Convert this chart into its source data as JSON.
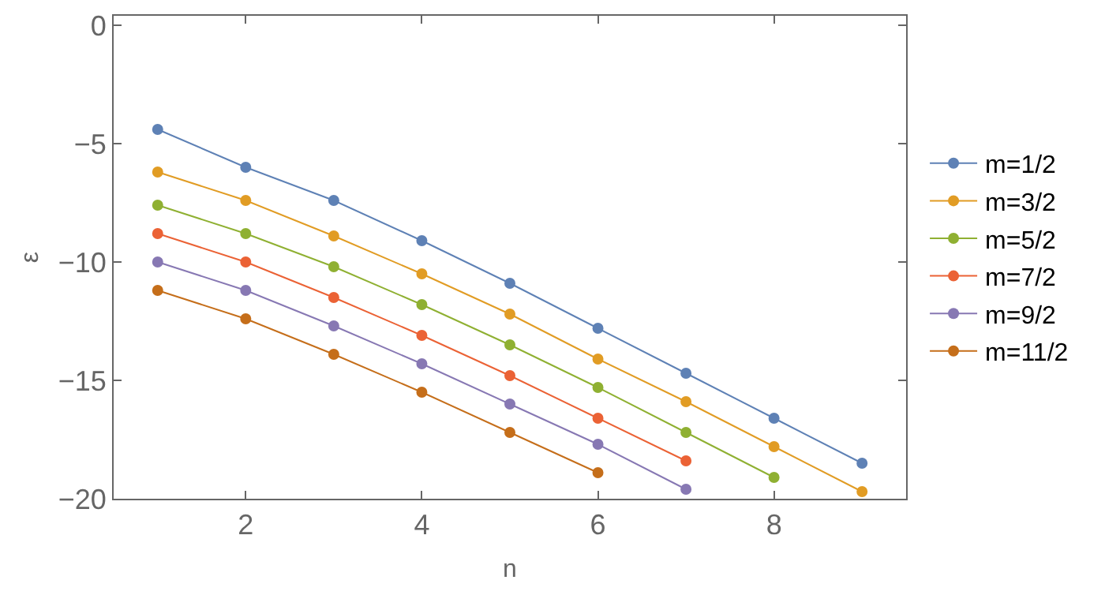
{
  "chart_data": {
    "type": "line",
    "xlabel": "n",
    "ylabel": "ε",
    "xlim": [
      0.5,
      9.5
    ],
    "ylim": [
      -20,
      0.4
    ],
    "xticks": [
      2,
      4,
      6,
      8
    ],
    "yticks": [
      -20,
      -15,
      -10,
      -5,
      0
    ],
    "legend": "right",
    "marker": "circle",
    "line_style": "solid",
    "series": [
      {
        "name": "m=1/2",
        "color": "#5e81b5",
        "x": [
          1,
          2,
          3,
          4,
          5,
          6,
          7,
          8,
          9
        ],
        "values": [
          -4.4,
          -6.0,
          -7.4,
          -9.1,
          -10.9,
          -12.8,
          -14.7,
          -16.6,
          -18.5
        ]
      },
      {
        "name": "m=3/2",
        "color": "#e19c24",
        "x": [
          1,
          2,
          3,
          4,
          5,
          6,
          7,
          8,
          9
        ],
        "values": [
          -6.2,
          -7.4,
          -8.9,
          -10.5,
          -12.2,
          -14.1,
          -15.9,
          -17.8,
          -19.7
        ]
      },
      {
        "name": "m=5/2",
        "color": "#8fb032",
        "x": [
          1,
          2,
          3,
          4,
          5,
          6,
          7,
          8
        ],
        "values": [
          -7.6,
          -8.8,
          -10.2,
          -11.8,
          -13.5,
          -15.3,
          -17.2,
          -19.1
        ]
      },
      {
        "name": "m=7/2",
        "color": "#eb6235",
        "x": [
          1,
          2,
          3,
          4,
          5,
          6,
          7
        ],
        "values": [
          -8.8,
          -10.0,
          -11.5,
          -13.1,
          -14.8,
          -16.6,
          -18.4
        ]
      },
      {
        "name": "m=9/2",
        "color": "#8778b3",
        "x": [
          1,
          2,
          3,
          4,
          5,
          6,
          7
        ],
        "values": [
          -10.0,
          -11.2,
          -12.7,
          -14.3,
          -16.0,
          -17.7,
          -19.6
        ]
      },
      {
        "name": "m=11/2",
        "color": "#c56e1a",
        "x": [
          1,
          2,
          3,
          4,
          5,
          6
        ],
        "values": [
          -11.2,
          -12.4,
          -13.9,
          -15.5,
          -17.2,
          -18.9
        ]
      }
    ]
  }
}
